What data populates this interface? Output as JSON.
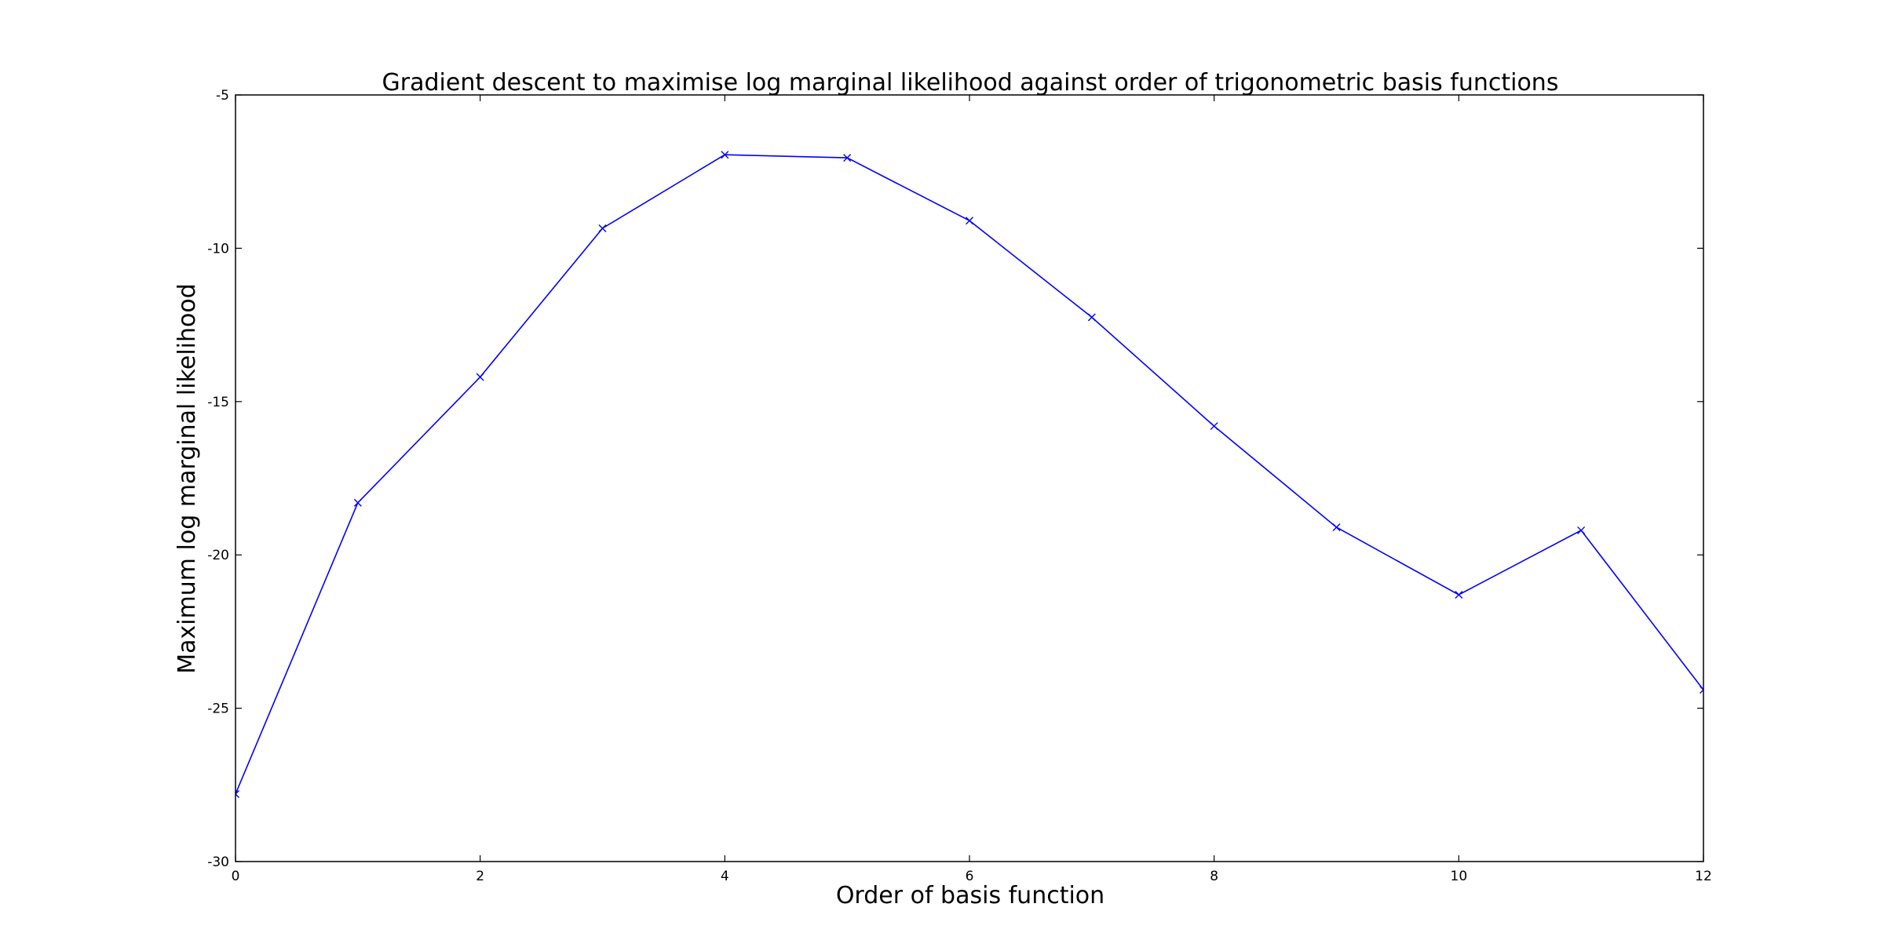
{
  "chart_data": {
    "type": "line",
    "title": "Gradient descent to maximise log marginal likelihood against order of trigonometric basis functions",
    "xlabel": "Order of basis function",
    "ylabel": "Maximum log marginal likelihood",
    "xlim": [
      0,
      12
    ],
    "ylim": [
      -30,
      -5
    ],
    "xticks": [
      0,
      2,
      4,
      6,
      8,
      10,
      12
    ],
    "yticks": [
      -30,
      -25,
      -20,
      -15,
      -10,
      -5
    ],
    "grid": false,
    "legend": "none",
    "marker": "x",
    "color": "#0000ff",
    "series": [
      {
        "x": [
          0,
          1,
          2,
          3,
          4,
          5,
          6,
          7,
          8,
          9,
          10,
          11,
          12
        ],
        "values": [
          -27.8,
          -18.3,
          -14.2,
          -9.35,
          -6.95,
          -7.05,
          -9.1,
          -12.25,
          -15.8,
          -19.1,
          -21.3,
          -19.2,
          -24.4
        ]
      }
    ]
  }
}
